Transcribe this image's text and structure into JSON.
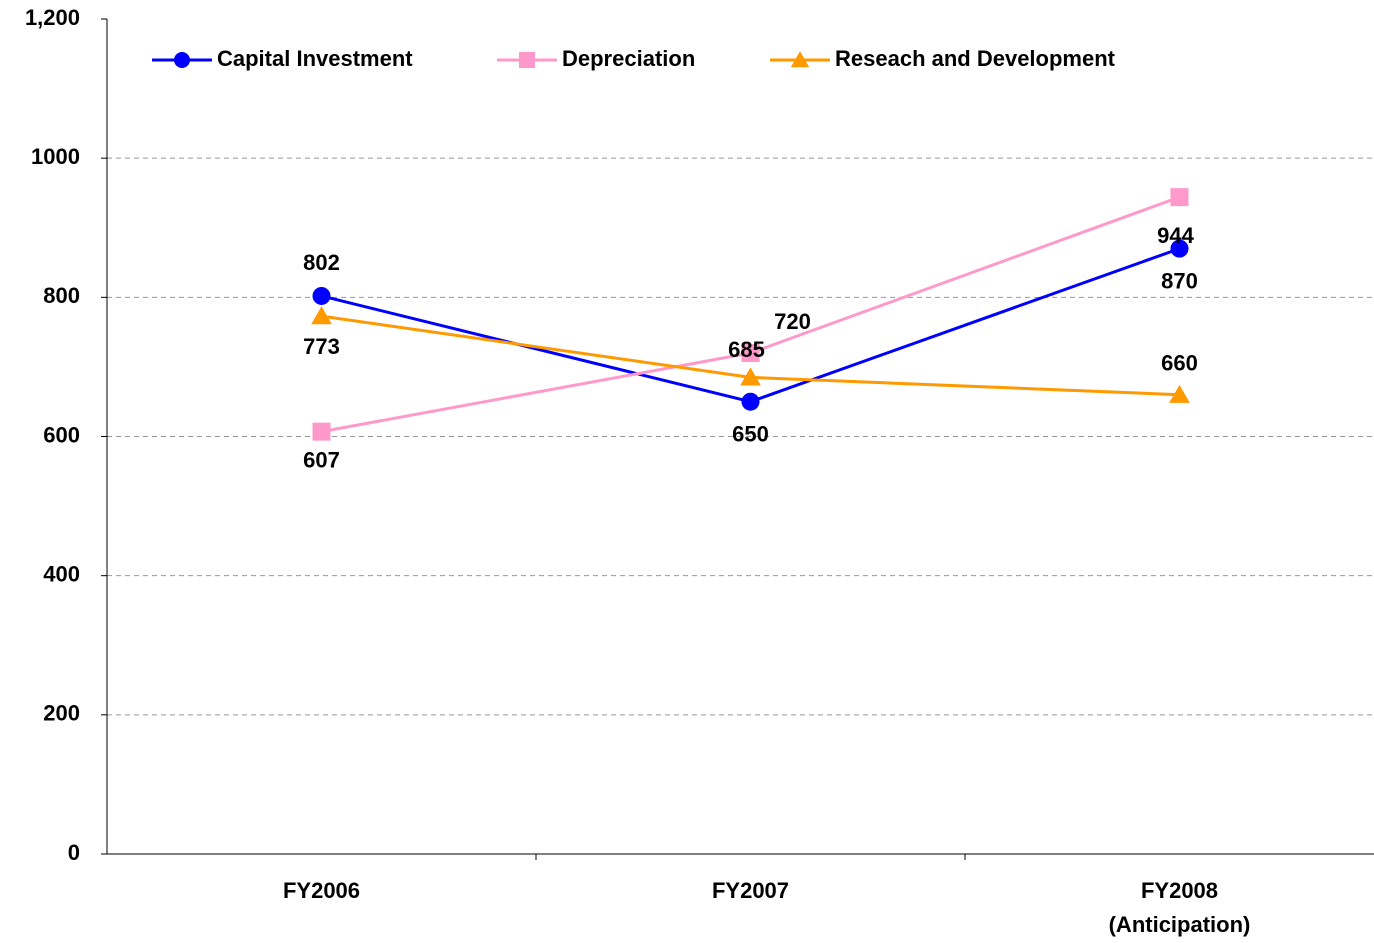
{
  "chart_data": {
    "type": "line",
    "categories": [
      "FY2006",
      "FY2007",
      "FY2008\n(Anticipation)"
    ],
    "series": [
      {
        "name": "Capital Investment",
        "color": "#0000ff",
        "marker": "circle",
        "values": [
          802,
          650,
          870
        ]
      },
      {
        "name": "Depreciation",
        "color": "#ff99cc",
        "marker": "square",
        "values": [
          607,
          720,
          944
        ]
      },
      {
        "name": "Reseach and Development",
        "color": "#ff9900",
        "marker": "triangle",
        "values": [
          773,
          685,
          660
        ]
      }
    ],
    "ylim": [
      0,
      1200
    ],
    "yticks": [
      0,
      200,
      400,
      600,
      800,
      1000,
      {
        "value": 1200,
        "label": "1,200"
      }
    ],
    "grid": true,
    "legend": "top"
  }
}
